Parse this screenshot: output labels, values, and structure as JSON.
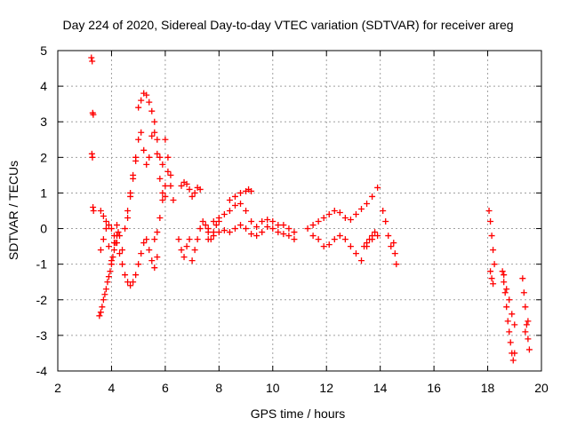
{
  "chart_data": {
    "type": "scatter",
    "title": "Day 224 of 2020, Sidereal Day-to-day VTEC variation (SDTVAR) for receiver areg",
    "xlabel": "GPS time / hours",
    "ylabel": "SDTVAR / TECUs",
    "xlim": [
      2,
      20
    ],
    "ylim": [
      -4,
      5
    ],
    "xticks": [
      2,
      4,
      6,
      8,
      10,
      12,
      14,
      16,
      18,
      20
    ],
    "yticks": [
      -4,
      -3,
      -2,
      -1,
      0,
      1,
      2,
      3,
      4,
      5
    ],
    "grid": true,
    "marker": "plus",
    "color": "#ff0000",
    "series": [
      {
        "name": "SDTVAR",
        "x": [
          3.25,
          3.28,
          3.3,
          3.32,
          3.27,
          3.29,
          3.31,
          3.33,
          3.55,
          3.6,
          3.65,
          3.7,
          3.75,
          3.8,
          3.85,
          3.9,
          3.95,
          4.0,
          4.05,
          4.1,
          4.15,
          4.2,
          4.25,
          3.6,
          3.7,
          3.8,
          3.9,
          4.0,
          4.1,
          4.2,
          4.3,
          4.4,
          4.5,
          4.6,
          4.7,
          4.8,
          4.9,
          5.0,
          5.1,
          5.2,
          5.3,
          5.4,
          5.5,
          5.6,
          5.7,
          3.6,
          3.7,
          3.8,
          3.9,
          4.0,
          4.1,
          4.2,
          4.3,
          4.4,
          4.5,
          4.6,
          4.7,
          4.8,
          4.9,
          5.0,
          5.1,
          5.2,
          5.3,
          5.4,
          5.5,
          5.6,
          5.7,
          5.8,
          5.9,
          6.0,
          6.1,
          6.2,
          4.6,
          4.7,
          4.8,
          4.9,
          5.0,
          5.1,
          5.2,
          5.3,
          5.4,
          5.5,
          5.6,
          5.7,
          5.8,
          5.9,
          6.0,
          5.6,
          5.7,
          5.8,
          5.9,
          6.0,
          6.1,
          6.2,
          6.3,
          6.5,
          6.6,
          6.7,
          6.8,
          6.9,
          7.0,
          7.1,
          7.2,
          7.3,
          7.4,
          7.5,
          7.6,
          7.7,
          7.8,
          7.9,
          8.0,
          6.6,
          6.7,
          6.8,
          6.9,
          7.0,
          7.1,
          7.2,
          7.3,
          7.6,
          7.8,
          8.0,
          8.2,
          8.4,
          8.6,
          8.8,
          9.0,
          9.2,
          9.4,
          9.6,
          9.8,
          10.0,
          10.2,
          10.4,
          10.6,
          10.8,
          7.6,
          7.8,
          8.0,
          8.2,
          8.4,
          8.6,
          8.8,
          9.0,
          9.2,
          9.4,
          9.6,
          9.8,
          10.0,
          10.2,
          10.4,
          10.6,
          10.8,
          8.4,
          8.6,
          8.8,
          9.0,
          9.1,
          9.2,
          11.3,
          11.5,
          11.7,
          11.9,
          12.1,
          12.3,
          12.5,
          12.7,
          12.9,
          13.1,
          13.3,
          13.5,
          13.7,
          13.9,
          11.5,
          11.7,
          11.9,
          12.1,
          12.3,
          12.5,
          12.7,
          12.9,
          13.1,
          13.3,
          13.5,
          13.7,
          13.9,
          13.4,
          13.5,
          13.6,
          13.7,
          13.8,
          14.1,
          14.2,
          14.3,
          14.4,
          14.5,
          14.55,
          14.6,
          18.05,
          18.1,
          18.15,
          18.2,
          18.25,
          18.1,
          18.15,
          18.2,
          18.55,
          18.6,
          18.65,
          18.7,
          18.75,
          18.8,
          18.85,
          18.9,
          18.95,
          19.0,
          18.6,
          18.7,
          18.8,
          18.9,
          19.0,
          19.3,
          19.35,
          19.4,
          19.45,
          19.5,
          19.55,
          19.4,
          19.5
        ],
        "y": [
          4.8,
          4.7,
          3.25,
          3.2,
          2.1,
          2.0,
          0.6,
          0.5,
          -2.45,
          -2.35,
          -2.2,
          -2.0,
          -1.85,
          -1.7,
          -1.5,
          -1.35,
          -1.2,
          -1.0,
          -0.8,
          -0.6,
          -0.4,
          -0.2,
          -0.1,
          0.5,
          0.35,
          0.2,
          0.1,
          0.0,
          -0.2,
          -0.4,
          -0.7,
          -1.0,
          -1.3,
          -1.5,
          -1.6,
          -1.5,
          -1.3,
          -1.0,
          -0.7,
          -0.4,
          -0.3,
          -0.6,
          -0.9,
          -1.1,
          -0.8,
          -0.6,
          -0.3,
          0.0,
          -0.5,
          -0.9,
          -0.4,
          0.1,
          -0.2,
          -0.6,
          0.0,
          0.5,
          1.0,
          1.5,
          2.0,
          2.5,
          2.7,
          2.2,
          1.8,
          2.0,
          2.6,
          3.0,
          2.5,
          2.0,
          1.8,
          2.5,
          2.0,
          1.5,
          0.3,
          0.9,
          1.4,
          1.9,
          3.4,
          3.6,
          3.8,
          3.75,
          3.55,
          3.3,
          2.7,
          2.1,
          1.4,
          1.0,
          0.9,
          -0.3,
          -0.1,
          0.3,
          0.8,
          1.2,
          1.6,
          1.2,
          0.8,
          -0.3,
          -0.6,
          -0.8,
          -0.5,
          -0.3,
          -0.9,
          -0.6,
          -0.3,
          0.0,
          0.2,
          0.1,
          -0.1,
          -0.3,
          -0.1,
          0.1,
          0.2,
          1.2,
          1.3,
          1.25,
          1.1,
          0.9,
          1.0,
          1.15,
          1.1,
          0.0,
          0.2,
          0.3,
          0.4,
          0.5,
          0.65,
          0.7,
          0.5,
          0.2,
          0.05,
          0.2,
          0.25,
          0.2,
          0.1,
          0.1,
          0.0,
          -0.1,
          -0.3,
          -0.2,
          -0.1,
          -0.05,
          -0.1,
          0.0,
          0.1,
          0.0,
          -0.15,
          -0.2,
          -0.1,
          0.05,
          0.0,
          -0.1,
          -0.15,
          -0.2,
          -0.3,
          0.8,
          0.9,
          1.0,
          1.05,
          1.1,
          1.05,
          0.0,
          0.1,
          0.2,
          0.3,
          0.4,
          0.5,
          0.45,
          0.3,
          0.25,
          0.4,
          0.55,
          0.7,
          0.9,
          1.15,
          -0.2,
          -0.3,
          -0.5,
          -0.45,
          -0.3,
          -0.2,
          -0.3,
          -0.5,
          -0.7,
          -0.9,
          -0.5,
          -0.3,
          -0.2,
          -0.5,
          -0.4,
          -0.3,
          -0.2,
          -0.1,
          0.5,
          0.2,
          -0.2,
          -0.5,
          -0.4,
          -0.7,
          -1.0,
          0.5,
          0.2,
          -0.2,
          -0.6,
          -1.0,
          -1.2,
          -1.4,
          -1.55,
          -1.2,
          -1.5,
          -1.8,
          -2.2,
          -2.6,
          -2.9,
          -3.2,
          -3.5,
          -3.7,
          -3.5,
          -1.3,
          -1.7,
          -2.0,
          -2.4,
          -2.7,
          -1.4,
          -1.8,
          -2.2,
          -2.7,
          -3.1,
          -3.4,
          -2.9,
          -2.6
        ]
      }
    ]
  }
}
